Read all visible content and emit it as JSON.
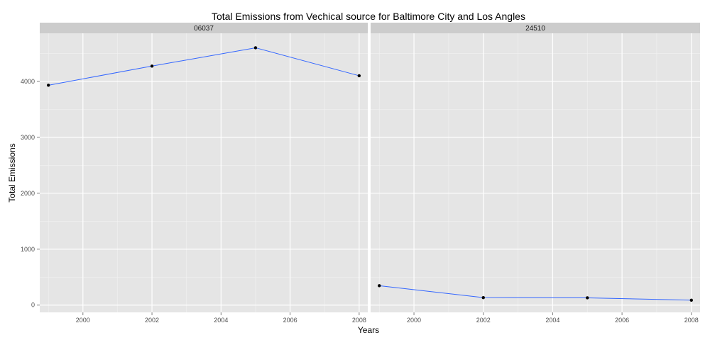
{
  "chart_data": {
    "type": "line",
    "title": "Total Emissions from Vechical source for Baltimore City and Los Angles",
    "xlabel": "Years",
    "ylabel": "Total Emissions",
    "xlim": [
      1998.75,
      2008.25
    ],
    "ylim": [
      -130,
      4860
    ],
    "x_ticks": [
      2000,
      2002,
      2004,
      2006,
      2008
    ],
    "y_ticks": [
      0,
      1000,
      2000,
      3000,
      4000
    ],
    "grid": true,
    "legend": "none",
    "line_color": "#3366FF",
    "point_color": "#000000",
    "panel_background": "#E5E5E5",
    "strip_background": "#CCCCCC",
    "facets": [
      {
        "label": "06037",
        "x": [
          1999,
          2002,
          2005,
          2008
        ],
        "y": [
          3931,
          4274,
          4601,
          4101
        ]
      },
      {
        "label": "24510",
        "x": [
          1999,
          2002,
          2005,
          2008
        ],
        "y": [
          347,
          134,
          130,
          88
        ]
      }
    ]
  }
}
